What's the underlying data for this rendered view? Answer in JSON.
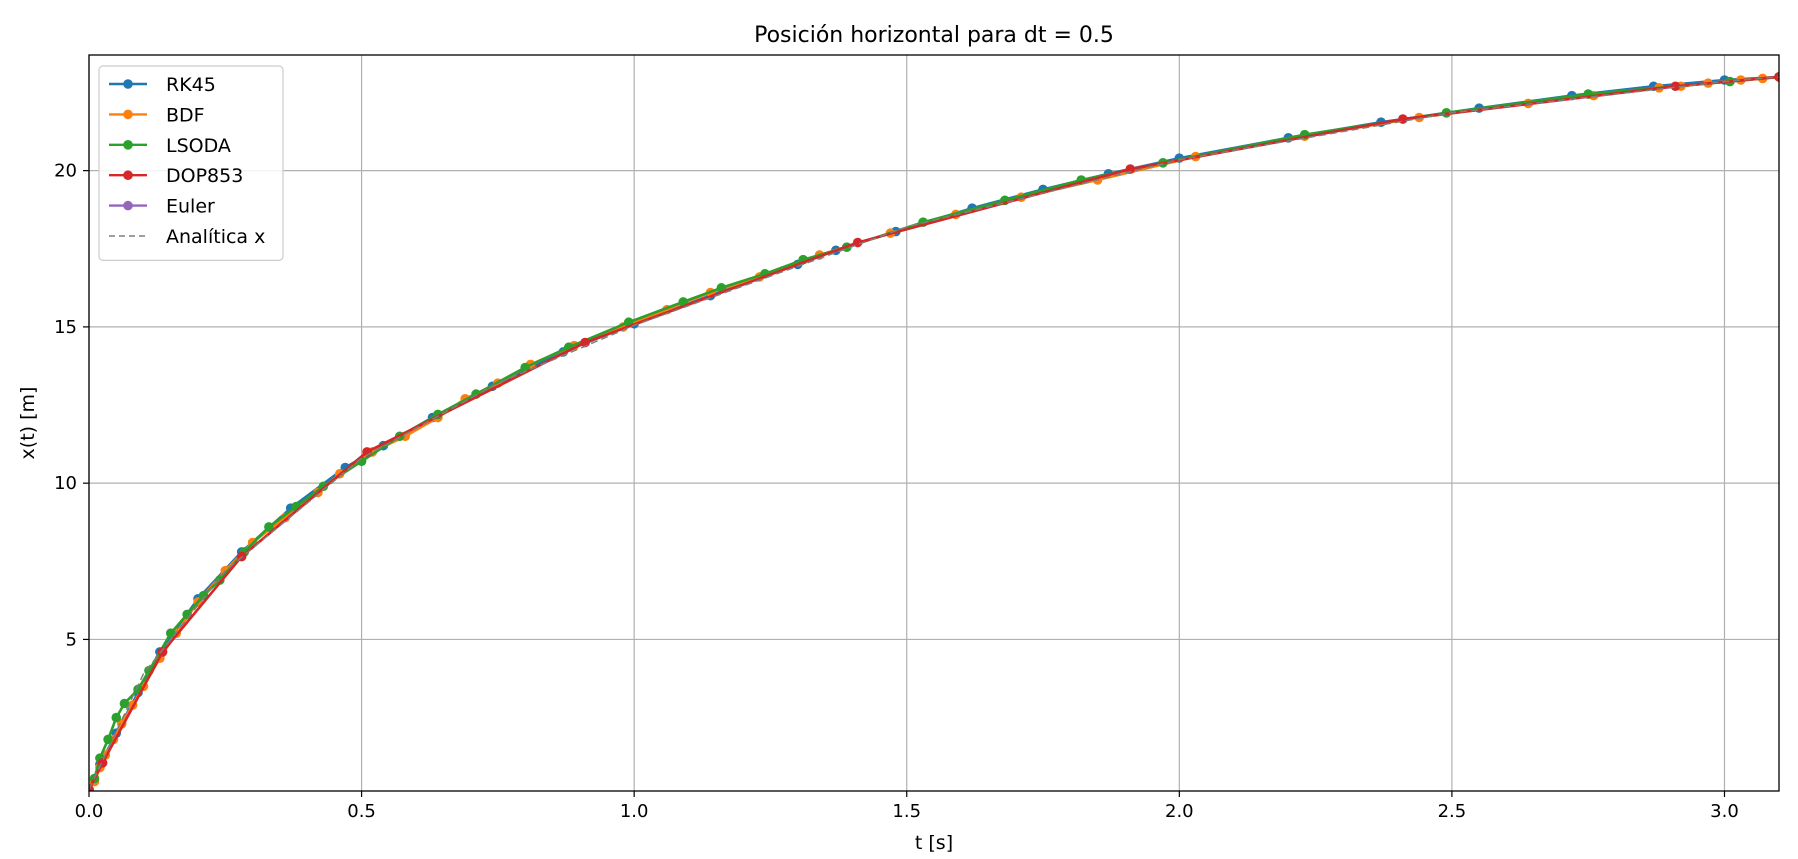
{
  "chart_data": {
    "type": "line",
    "title": "Posición horizontal para dt = 0.5",
    "xlabel": "t [s]",
    "ylabel": "x(t) [m]",
    "xlim": [
      0,
      3.1
    ],
    "ylim": [
      0.15,
      23.7
    ],
    "xticks": [
      "0.0",
      "0.5",
      "1.0",
      "1.5",
      "2.0",
      "2.5",
      "3.0"
    ],
    "xtick_values": [
      0,
      0.5,
      1.0,
      1.5,
      2.0,
      2.5,
      3.0
    ],
    "yticks": [
      "5",
      "10",
      "15",
      "20"
    ],
    "ytick_values": [
      5,
      10,
      15,
      20
    ],
    "grid": true,
    "legend_position": "top-left",
    "series": [
      {
        "name": "RK45",
        "color": "#1f77b4",
        "style": "line-marker",
        "x": [
          0,
          0.02,
          0.05,
          0.09,
          0.13,
          0.2,
          0.28,
          0.37,
          0.47,
          0.54,
          0.63,
          0.74,
          0.87,
          1.0,
          1.14,
          1.3,
          1.37,
          1.48,
          1.62,
          1.75,
          1.87,
          2.0,
          2.2,
          2.37,
          2.55,
          2.72,
          2.87,
          3.0,
          3.1
        ],
        "y": [
          0.2,
          1.0,
          2.0,
          3.3,
          4.6,
          6.3,
          7.8,
          9.2,
          10.5,
          11.2,
          12.1,
          13.1,
          14.2,
          15.1,
          16.0,
          17.0,
          17.45,
          18.05,
          18.8,
          19.4,
          19.9,
          20.4,
          21.05,
          21.55,
          22.0,
          22.4,
          22.7,
          22.9,
          23.0
        ]
      },
      {
        "name": "BDF",
        "color": "#ff7f0e",
        "style": "line-marker",
        "x": [
          0,
          0.01,
          0.02,
          0.03,
          0.045,
          0.06,
          0.08,
          0.1,
          0.13,
          0.16,
          0.2,
          0.25,
          0.3,
          0.36,
          0.42,
          0.46,
          0.52,
          0.58,
          0.64,
          0.69,
          0.75,
          0.81,
          0.89,
          0.98,
          1.06,
          1.14,
          1.23,
          1.34,
          1.47,
          1.59,
          1.71,
          1.85,
          2.03,
          2.23,
          2.44,
          2.64,
          2.76,
          2.88,
          2.92,
          2.97,
          3.03,
          3.07,
          3.1
        ],
        "y": [
          0.2,
          0.45,
          0.9,
          1.3,
          1.8,
          2.3,
          2.9,
          3.5,
          4.4,
          5.2,
          6.2,
          7.2,
          8.1,
          8.9,
          9.7,
          10.3,
          11.0,
          11.5,
          12.1,
          12.7,
          13.2,
          13.8,
          14.4,
          15.0,
          15.55,
          16.1,
          16.6,
          17.3,
          18.0,
          18.6,
          19.15,
          19.7,
          20.45,
          21.1,
          21.7,
          22.15,
          22.4,
          22.65,
          22.7,
          22.8,
          22.9,
          22.95,
          23.0
        ]
      },
      {
        "name": "LSODA",
        "color": "#2ca02c",
        "style": "line-marker",
        "x": [
          0,
          0.01,
          0.02,
          0.035,
          0.05,
          0.065,
          0.09,
          0.11,
          0.15,
          0.18,
          0.21,
          0.24,
          0.285,
          0.33,
          0.38,
          0.43,
          0.5,
          0.57,
          0.64,
          0.71,
          0.8,
          0.88,
          0.99,
          1.09,
          1.16,
          1.24,
          1.31,
          1.39,
          1.53,
          1.68,
          1.82,
          1.97,
          2.23,
          2.49,
          2.75,
          3.01,
          3.1
        ],
        "y": [
          0.2,
          0.55,
          1.2,
          1.8,
          2.5,
          2.95,
          3.4,
          4.0,
          5.2,
          5.8,
          6.4,
          6.9,
          7.8,
          8.6,
          9.25,
          9.9,
          10.7,
          11.5,
          12.2,
          12.85,
          13.7,
          14.35,
          15.15,
          15.8,
          16.25,
          16.7,
          17.15,
          17.55,
          18.35,
          19.05,
          19.7,
          20.25,
          21.15,
          21.85,
          22.45,
          22.85,
          23.0
        ]
      },
      {
        "name": "DOP853",
        "color": "#d62728",
        "style": "line-marker",
        "x": [
          0,
          0.025,
          0.135,
          0.28,
          0.51,
          0.91,
          1.41,
          1.91,
          2.41,
          2.91,
          3.1
        ],
        "y": [
          0.2,
          1.05,
          4.6,
          7.65,
          11.0,
          14.5,
          17.7,
          20.05,
          21.65,
          22.7,
          23.0
        ]
      },
      {
        "name": "Euler",
        "color": "#9467bd",
        "style": "line-marker",
        "x": [],
        "y": []
      },
      {
        "name": "Analítica x",
        "color": "#7f7f7f",
        "style": "dashed",
        "x": [
          0,
          0.1,
          0.25,
          0.5,
          0.75,
          1.0,
          1.5,
          2.0,
          2.5,
          3.0,
          3.1
        ],
        "y": [
          0.2,
          3.9,
          7.2,
          10.8,
          13.2,
          15.05,
          18.2,
          20.35,
          21.85,
          22.85,
          23.0
        ]
      }
    ]
  }
}
